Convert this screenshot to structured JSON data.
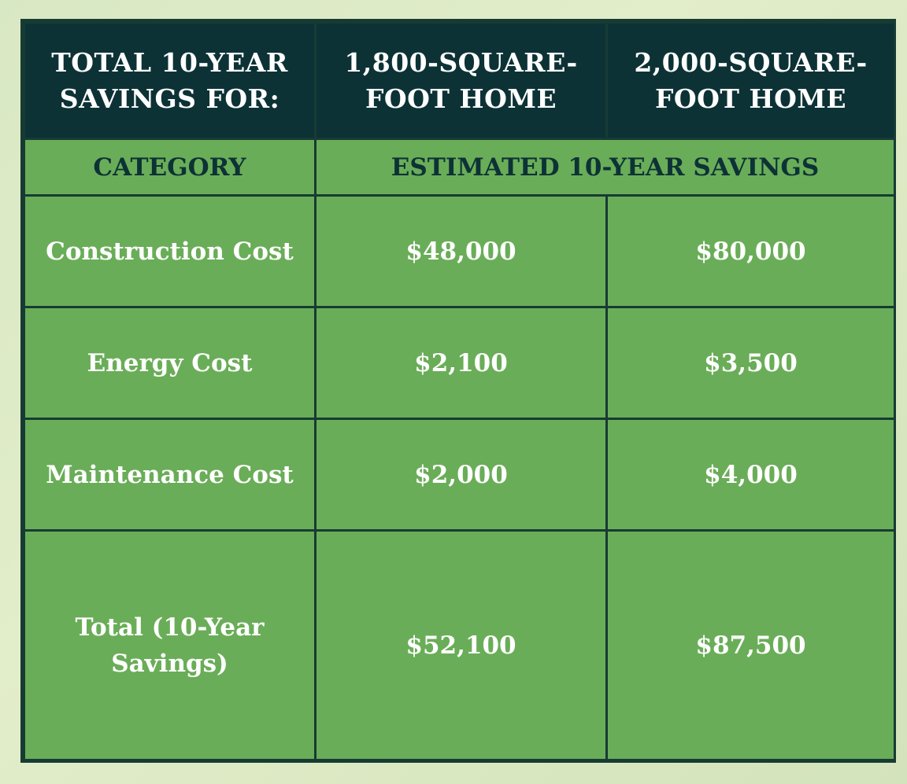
{
  "table": {
    "header": {
      "col1": "TOTAL 10-YEAR SAVINGS FOR:",
      "col2": "1,800-SQUARE-FOOT HOME",
      "col3": "2,000-SQUARE-FOOT HOME"
    },
    "subheader": {
      "category": "CATEGORY",
      "estimated": "ESTIMATED 10-YEAR SAVINGS"
    },
    "rows": [
      {
        "category": "Construction Cost",
        "home1800": "$48,000",
        "home2000": "$80,000"
      },
      {
        "category": "Energy Cost",
        "home1800": "$2,100",
        "home2000": "$3,500"
      },
      {
        "category": "Maintenance Cost",
        "home1800": "$2,000",
        "home2000": "$4,000"
      },
      {
        "category": "Total (10-Year Savings)",
        "home1800": "$52,100",
        "home2000": "$87,500"
      }
    ]
  },
  "colors": {
    "header_bg": "#0d3236",
    "cell_bg": "#6aad58",
    "border": "#173b33",
    "page_bg": "#dbe8c6"
  }
}
